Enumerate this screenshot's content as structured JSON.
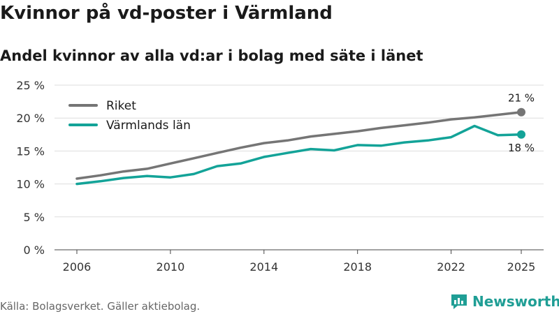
{
  "header": {
    "title": "Kvinnor på vd-poster i Värmland",
    "subtitle": "Andel kvinnor av alla vd:ar i bolag med säte i länet"
  },
  "footer": {
    "source": "Källa: Bolagsverket. Gäller aktiebolag.",
    "brand": "Newsworthy"
  },
  "colors": {
    "riket": "#757575",
    "varmland": "#13a398",
    "grid": "#dddddd",
    "brand": "#1f9e95"
  },
  "chart_data": {
    "type": "line",
    "title": "Kvinnor på vd-poster i Värmland",
    "subtitle": "Andel kvinnor av alla vd:ar i bolag med säte i länet",
    "xlabel": "",
    "ylabel": "",
    "xlim": [
      2006,
      2025
    ],
    "ylim": [
      0,
      25
    ],
    "xticks": [
      2006,
      2010,
      2014,
      2018,
      2022,
      2025
    ],
    "yticks": [
      0,
      5,
      10,
      15,
      20,
      25
    ],
    "ytick_labels": [
      "0 %",
      "5 %",
      "10 %",
      "15 %",
      "20 %",
      "25 %"
    ],
    "grid": true,
    "legend_position": "top-left",
    "x": [
      2006,
      2007,
      2008,
      2009,
      2010,
      2011,
      2012,
      2013,
      2014,
      2015,
      2016,
      2017,
      2018,
      2019,
      2020,
      2021,
      2022,
      2023,
      2024,
      2025
    ],
    "series": [
      {
        "name": "Riket",
        "color": "#757575",
        "values": [
          10.8,
          11.3,
          11.9,
          12.3,
          13.1,
          13.9,
          14.7,
          15.5,
          16.2,
          16.6,
          17.2,
          17.6,
          18.0,
          18.5,
          18.9,
          19.3,
          19.8,
          20.1,
          20.5,
          20.9
        ],
        "end_label": "21 %"
      },
      {
        "name": "Värmlands län",
        "color": "#13a398",
        "values": [
          10.0,
          10.4,
          10.9,
          11.2,
          11.0,
          11.5,
          12.7,
          13.1,
          14.1,
          14.7,
          15.3,
          15.1,
          15.9,
          15.8,
          16.3,
          16.6,
          17.1,
          18.8,
          17.4,
          17.5
        ],
        "end_label": "18 %"
      }
    ]
  }
}
